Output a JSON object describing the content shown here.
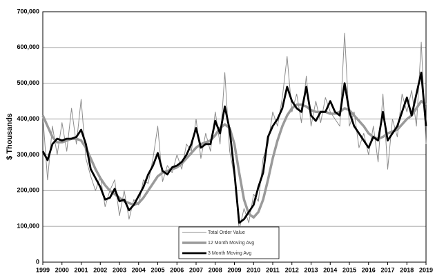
{
  "chart_data": {
    "type": "line",
    "ylabel": "$ Thousands",
    "x": [
      1999,
      1999.25,
      1999.5,
      1999.75,
      2000,
      2000.25,
      2000.5,
      2000.75,
      2001,
      2001.25,
      2001.5,
      2001.75,
      2002,
      2002.25,
      2002.5,
      2002.75,
      2003,
      2003.25,
      2003.5,
      2003.75,
      2004,
      2004.25,
      2004.5,
      2004.75,
      2005,
      2005.25,
      2005.5,
      2005.75,
      2006,
      2006.25,
      2006.5,
      2006.75,
      2007,
      2007.25,
      2007.5,
      2007.75,
      2008,
      2008.25,
      2008.5,
      2008.75,
      2009,
      2009.25,
      2009.5,
      2009.75,
      2010,
      2010.25,
      2010.5,
      2010.75,
      2011,
      2011.25,
      2011.5,
      2011.75,
      2012,
      2012.25,
      2012.5,
      2012.75,
      2013,
      2013.25,
      2013.5,
      2013.75,
      2014,
      2014.25,
      2014.5,
      2014.75,
      2015,
      2015.25,
      2015.5,
      2015.75,
      2016,
      2016.25,
      2016.5,
      2016.75,
      2017,
      2017.25,
      2017.5,
      2017.75,
      2018,
      2018.25,
      2018.5,
      2018.75,
      2019
    ],
    "series": [
      {
        "name": "Total Order Value",
        "color": "#8c8c8c",
        "width": 1,
        "values": [
          410000,
          230000,
          380000,
          300000,
          390000,
          310000,
          430000,
          330000,
          455000,
          290000,
          240000,
          200000,
          240000,
          155000,
          200000,
          230000,
          130000,
          200000,
          120000,
          175000,
          160000,
          230000,
          220000,
          290000,
          380000,
          225000,
          270000,
          250000,
          300000,
          260000,
          330000,
          310000,
          400000,
          290000,
          360000,
          310000,
          420000,
          330000,
          530000,
          310000,
          240000,
          90000,
          150000,
          110000,
          190000,
          170000,
          290000,
          330000,
          420000,
          380000,
          460000,
          575000,
          420000,
          470000,
          390000,
          520000,
          380000,
          450000,
          390000,
          460000,
          420000,
          400000,
          380000,
          640000,
          380000,
          420000,
          320000,
          360000,
          300000,
          380000,
          280000,
          470000,
          260000,
          400000,
          350000,
          470000,
          420000,
          480000,
          380000,
          615000,
          330000
        ]
      },
      {
        "name": "12 Month Moving Avg",
        "color": "#9a9a9a",
        "width": 3.5,
        "values": [
          410000,
          380000,
          350000,
          335000,
          335000,
          340000,
          345000,
          345000,
          340000,
          320000,
          290000,
          260000,
          235000,
          215000,
          200000,
          190000,
          180000,
          170000,
          165000,
          160000,
          165000,
          180000,
          200000,
          220000,
          240000,
          250000,
          255000,
          260000,
          265000,
          275000,
          290000,
          305000,
          320000,
          330000,
          335000,
          340000,
          355000,
          375000,
          385000,
          375000,
          330000,
          250000,
          175000,
          135000,
          125000,
          140000,
          175000,
          230000,
          290000,
          340000,
          380000,
          410000,
          430000,
          440000,
          440000,
          435000,
          425000,
          420000,
          420000,
          420000,
          415000,
          415000,
          420000,
          430000,
          425000,
          410000,
          395000,
          380000,
          360000,
          350000,
          345000,
          350000,
          360000,
          365000,
          370000,
          385000,
          400000,
          410000,
          430000,
          450000,
          440000
        ]
      },
      {
        "name": "3 Month Moving Avg",
        "color": "#000000",
        "width": 2.8,
        "values": [
          310000,
          285000,
          330000,
          345000,
          340000,
          345000,
          345000,
          350000,
          370000,
          330000,
          260000,
          235000,
          210000,
          175000,
          180000,
          205000,
          170000,
          175000,
          145000,
          160000,
          185000,
          210000,
          245000,
          270000,
          305000,
          255000,
          245000,
          265000,
          270000,
          280000,
          300000,
          330000,
          375000,
          320000,
          330000,
          330000,
          395000,
          360000,
          435000,
          370000,
          250000,
          110000,
          120000,
          140000,
          160000,
          210000,
          250000,
          350000,
          380000,
          400000,
          430000,
          490000,
          450000,
          430000,
          420000,
          490000,
          410000,
          395000,
          420000,
          420000,
          450000,
          420000,
          410000,
          500000,
          420000,
          380000,
          360000,
          340000,
          320000,
          350000,
          340000,
          420000,
          340000,
          360000,
          380000,
          420000,
          460000,
          410000,
          470000,
          530000,
          380000
        ]
      }
    ],
    "xlim": [
      1999,
      2019
    ],
    "xticks": [
      1999,
      2000,
      2001,
      2002,
      2003,
      2004,
      2005,
      2006,
      2007,
      2008,
      2009,
      2010,
      2011,
      2012,
      2013,
      2014,
      2015,
      2016,
      2017,
      2018,
      2019
    ],
    "ylim": [
      0,
      700000
    ],
    "yticks": [
      0,
      {
        "value": 100000,
        "label": "100,000"
      },
      {
        "value": 200000,
        "label": "200,000"
      },
      {
        "value": 300000,
        "label": "300,000"
      },
      {
        "value": 400000,
        "label": "400,000"
      },
      {
        "value": 500000,
        "label": "500,000"
      },
      {
        "value": 600000,
        "label": "600,000"
      },
      {
        "value": 700000,
        "label": "700,000"
      }
    ],
    "grid": true,
    "legend": "lower center"
  }
}
